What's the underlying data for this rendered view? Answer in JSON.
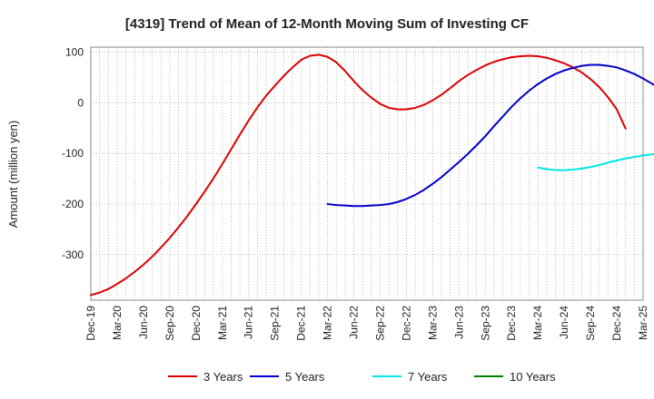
{
  "chart_data": {
    "type": "line",
    "title": "[4319]  Trend of Mean of 12-Month Moving Sum of Investing CF",
    "xlabel": "",
    "ylabel": "Amount (million yen)",
    "ylim": [
      -390,
      110
    ],
    "yticks": [
      100,
      0,
      -100,
      -200,
      -300
    ],
    "grid": true,
    "legend_position": "bottom",
    "x_ticks": [
      "Dec-19",
      "Mar-20",
      "Jun-20",
      "Sep-20",
      "Dec-20",
      "Mar-21",
      "Jun-21",
      "Sep-21",
      "Dec-21",
      "Mar-22",
      "Jun-22",
      "Sep-22",
      "Dec-22",
      "Mar-23",
      "Jun-23",
      "Sep-23",
      "Dec-23",
      "Mar-24",
      "Jun-24",
      "Sep-24",
      "Dec-24",
      "Mar-25"
    ],
    "x_range_months": [
      0,
      63
    ],
    "series": [
      {
        "name": "3 Years",
        "color": "#dd0000",
        "start_month": 0,
        "values": [
          -380,
          -375,
          -368,
          -358,
          -347,
          -334,
          -320,
          -304,
          -286,
          -267,
          -246,
          -224,
          -200,
          -175,
          -149,
          -121,
          -92,
          -63,
          -35,
          -9,
          14,
          34,
          53,
          70,
          85,
          93,
          95,
          91,
          80,
          63,
          43,
          25,
          10,
          -2,
          -10,
          -13,
          -13,
          -10,
          -4,
          5,
          16,
          29,
          43,
          55,
          65,
          74,
          81,
          86,
          90,
          92,
          93,
          92,
          89,
          84,
          78,
          70,
          60,
          47,
          31,
          11,
          -13,
          -51
        ]
      },
      {
        "name": "5 Years",
        "color": "#0000cc",
        "start_month": 27,
        "values": [
          -200,
          -202,
          -203,
          -204,
          -204,
          -203,
          -202,
          -200,
          -196,
          -190,
          -182,
          -172,
          -160,
          -147,
          -132,
          -117,
          -101,
          -84,
          -66,
          -46,
          -27,
          -8,
          9,
          24,
          37,
          48,
          57,
          64,
          69,
          73,
          75,
          75,
          73,
          70,
          64,
          57,
          48,
          38,
          28,
          17,
          5,
          -6
        ]
      },
      {
        "name": "7 Years",
        "color": "#00e5e5",
        "start_month": 51,
        "values": [
          -128,
          -131,
          -133,
          -133,
          -132,
          -130,
          -127,
          -123,
          -118,
          -114,
          -110,
          -107,
          -104,
          -102,
          -100,
          -99,
          -98
        ]
      },
      {
        "name": "10 Years",
        "color": "#008000",
        "start_month": 0,
        "values": []
      }
    ]
  }
}
